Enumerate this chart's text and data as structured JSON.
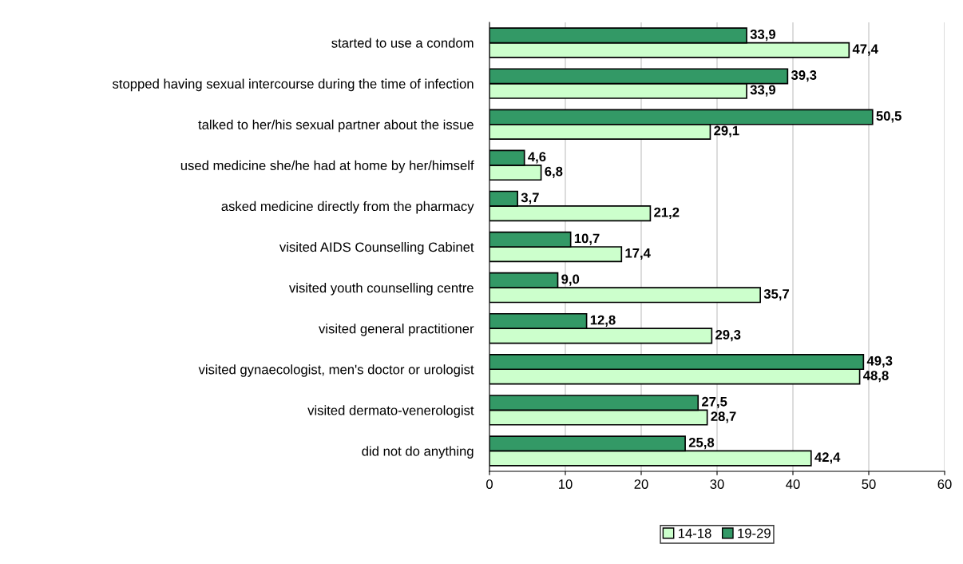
{
  "chart_data": {
    "type": "bar",
    "orientation": "horizontal",
    "categories": [
      "started to use a condom",
      "stopped having sexual intercourse during the time of infection",
      "talked to her/his sexual partner about the issue",
      "used medicine she/he had at home by her/himself",
      "asked medicine directly from the pharmacy",
      "visited AIDS Counselling Cabinet",
      "visited youth counselling centre",
      "visited general practitioner",
      "visited gynaecologist, men's doctor or urologist",
      "visited dermato-venerologist",
      "did not do anything"
    ],
    "series": [
      {
        "name": "14-18",
        "color": "#ccffcc",
        "values": [
          47.4,
          33.9,
          29.1,
          6.8,
          21.2,
          17.4,
          35.7,
          29.3,
          48.8,
          28.7,
          42.4
        ],
        "value_labels": [
          "47,4",
          "33,9",
          "29,1",
          "6,8",
          "21,2",
          "17,4",
          "35,7",
          "29,3",
          "48,8",
          "28,7",
          "42,4"
        ]
      },
      {
        "name": "19-29",
        "color": "#339966",
        "values": [
          33.9,
          39.3,
          50.5,
          4.6,
          3.7,
          10.7,
          9.0,
          12.8,
          49.3,
          27.5,
          25.8
        ],
        "value_labels": [
          "33,9",
          "39,3",
          "50,5",
          "4,6",
          "3,7",
          "10,7",
          "9,0",
          "12,8",
          "49,3",
          "27,5",
          "25,8"
        ]
      }
    ],
    "xlim": [
      0,
      60
    ],
    "xticks": [
      0,
      10,
      20,
      30,
      40,
      50,
      60
    ],
    "grid": "x",
    "legend": "bottom"
  }
}
